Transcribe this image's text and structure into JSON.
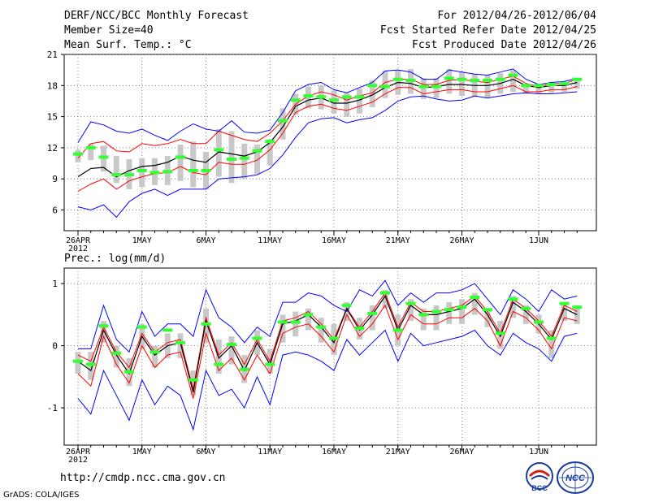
{
  "header": {
    "title": "DERF/NCC/BCC Monthly Forecast",
    "member_size": "Member Size=40",
    "variable": "Mean Surf. Temp.: °C",
    "forecast_period": "For 2012/04/26-2012/06/04",
    "started_refer_date": "Fcst Started Refer Date 2012/04/25",
    "produced_date": "Fcst Produced Date 2012/04/26"
  },
  "footer": {
    "url": "http://cmdp.ncc.cma.gov.cn",
    "credit": "GrADS: COLA/IGES",
    "logo_bcc": "BCC",
    "logo_ncc": "NCC"
  },
  "colors": {
    "envelope": "#0000ff",
    "spread": "#ff0000",
    "mean": "#000000",
    "box": "#c8c8c8",
    "median": "#33ff33",
    "grid": "#666666"
  },
  "chart_data": [
    {
      "type": "line",
      "panel": "temperature",
      "title": "Mean Surf. Temp.: °C",
      "x_days": 40,
      "x_tick_labels": [
        {
          "day": 0,
          "label": "26APR",
          "sub": "2012"
        },
        {
          "day": 5,
          "label": "1MAY"
        },
        {
          "day": 10,
          "label": "6MAY"
        },
        {
          "day": 15,
          "label": "11MAY"
        },
        {
          "day": 20,
          "label": "16MAY"
        },
        {
          "day": 25,
          "label": "21MAY"
        },
        {
          "day": 30,
          "label": "26MAY"
        },
        {
          "day": 36,
          "label": "1JUN"
        }
      ],
      "ylim": [
        4,
        21
      ],
      "yticks": [
        6,
        9,
        12,
        15,
        18,
        21
      ],
      "series": [
        {
          "name": "max",
          "values": [
            6.3,
            6.0,
            6.5,
            5.3,
            6.8,
            7.6,
            8.0,
            7.4,
            8.0,
            8.0,
            8.0,
            9.0,
            9.1,
            9.2,
            9.4,
            10.0,
            11.3,
            13.0,
            14.4,
            14.8,
            14.9,
            14.4,
            14.7,
            14.9,
            15.6,
            16.5,
            16.9,
            17.0,
            16.7,
            16.5,
            16.6,
            17.0,
            16.8,
            17.0,
            17.2,
            17.3,
            17.2,
            17.2,
            17.3,
            17.4
          ]
        },
        {
          "name": "p_high",
          "values": [
            11.0,
            12.4,
            12.6,
            11.7,
            11.6,
            12.4,
            12.2,
            12.4,
            12.8,
            12.4,
            12.4,
            13.6,
            13.2,
            12.8,
            12.6,
            13.4,
            14.6,
            16.2,
            17.0,
            17.4,
            17.1,
            16.6,
            17.0,
            17.3,
            18.3,
            18.6,
            18.6,
            18.1,
            18.1,
            18.5,
            18.6,
            18.4,
            18.3,
            18.6,
            18.9,
            18.2,
            17.9,
            18.2,
            18.2,
            18.6
          ]
        },
        {
          "name": "mean",
          "values": [
            9.2,
            10.0,
            10.1,
            9.2,
            9.8,
            10.2,
            10.3,
            10.6,
            11.2,
            10.8,
            10.6,
            11.6,
            11.4,
            11.2,
            11.6,
            12.5,
            14.0,
            16.0,
            16.6,
            16.8,
            16.3,
            16.3,
            16.6,
            17.1,
            17.8,
            18.3,
            18.2,
            17.8,
            17.9,
            18.1,
            18.1,
            18.0,
            18.0,
            18.2,
            18.6,
            18.0,
            17.8,
            18.0,
            18.0,
            18.3
          ]
        },
        {
          "name": "p_low",
          "values": [
            7.8,
            8.5,
            9.0,
            8.0,
            8.8,
            9.2,
            9.5,
            9.6,
            10.2,
            9.6,
            9.4,
            10.6,
            10.4,
            10.4,
            10.8,
            11.8,
            13.4,
            15.4,
            16.0,
            16.2,
            15.8,
            15.6,
            16.0,
            16.4,
            17.2,
            17.8,
            17.8,
            17.2,
            17.4,
            17.6,
            17.6,
            17.4,
            17.4,
            17.7,
            18.0,
            17.4,
            17.4,
            17.6,
            17.6,
            17.9
          ]
        },
        {
          "name": "min",
          "values": [
            12.5,
            14.5,
            14.2,
            13.6,
            13.4,
            13.8,
            13.2,
            12.7,
            13.6,
            14.3,
            13.8,
            13.6,
            14.6,
            13.5,
            13.4,
            13.7,
            15.4,
            17.5,
            18.1,
            18.3,
            17.6,
            17.3,
            17.8,
            18.3,
            19.4,
            19.5,
            19.3,
            18.6,
            18.6,
            19.5,
            19.3,
            19.1,
            19.0,
            19.3,
            19.6,
            18.6,
            18.1,
            18.3,
            18.4,
            18.7
          ]
        }
      ],
      "boxes": {
        "low": [
          10.6,
          10.8,
          9.7,
          8.6,
          8.0,
          8.2,
          8.4,
          8.4,
          8.8,
          8.2,
          8.0,
          9.2,
          8.6,
          9.0,
          9.5,
          10.3,
          12.8,
          15.2,
          15.8,
          15.7,
          15.3,
          15.0,
          15.3,
          15.9,
          16.8,
          17.1,
          17.2,
          16.7,
          16.8,
          17.2,
          17.0,
          16.9,
          16.8,
          17.2,
          17.4,
          17.2,
          17.2,
          17.3,
          17.4,
          17.7
        ],
        "high": [
          11.8,
          12.4,
          12.2,
          11.2,
          10.9,
          11.0,
          11.0,
          11.2,
          12.3,
          12.6,
          11.6,
          13.8,
          13.6,
          12.4,
          12.3,
          12.8,
          15.8,
          17.2,
          17.9,
          18.0,
          17.5,
          17.3,
          17.7,
          18.5,
          19.4,
          19.5,
          19.6,
          18.7,
          18.7,
          19.6,
          19.3,
          19.1,
          19.0,
          19.2,
          19.5,
          18.0,
          17.8,
          18.2,
          18.3,
          18.7
        ],
        "median": [
          11.4,
          12.0,
          11.1,
          9.4,
          9.4,
          9.8,
          9.6,
          9.7,
          11.1,
          9.8,
          9.8,
          11.8,
          10.9,
          11.0,
          11.7,
          12.6,
          14.6,
          16.6,
          17.0,
          16.9,
          16.6,
          16.9,
          16.9,
          18.0,
          17.9,
          18.6,
          18.5,
          17.9,
          17.9,
          18.7,
          18.6,
          18.5,
          18.5,
          18.6,
          19.0,
          18.0,
          18.0,
          18.1,
          18.2,
          18.6
        ]
      }
    },
    {
      "type": "line",
      "panel": "precipitation",
      "title": "Prec.: log(mm/d)",
      "x_days": 40,
      "x_tick_labels": [
        {
          "day": 0,
          "label": "26APR",
          "sub": "2012"
        },
        {
          "day": 5,
          "label": "1MAY"
        },
        {
          "day": 10,
          "label": "6MAY"
        },
        {
          "day": 15,
          "label": "11MAY"
        },
        {
          "day": 20,
          "label": "16MAY"
        },
        {
          "day": 25,
          "label": "21MAY"
        },
        {
          "day": 30,
          "label": "26MAY"
        },
        {
          "day": 36,
          "label": "1JUN"
        }
      ],
      "ylim": [
        -1.6,
        1.25
      ],
      "yticks": [
        -1,
        0,
        1
      ],
      "series": [
        {
          "name": "max",
          "values": [
            -0.05,
            -0.05,
            0.65,
            0.1,
            -0.1,
            0.55,
            0.15,
            0.35,
            0.35,
            0.15,
            0.9,
            0.45,
            0.3,
            0.05,
            0.3,
            0.15,
            0.7,
            0.7,
            0.85,
            0.8,
            0.65,
            0.55,
            0.9,
            0.8,
            1.05,
            0.65,
            0.85,
            0.7,
            0.85,
            0.85,
            0.9,
            1.0,
            0.75,
            0.5,
            0.9,
            0.75,
            0.55,
            0.9,
            0.75,
            0.8
          ]
        },
        {
          "name": "p_high",
          "values": [
            -0.15,
            -0.25,
            0.3,
            -0.1,
            -0.35,
            0.2,
            -0.1,
            0.05,
            0.1,
            -0.7,
            0.45,
            -0.15,
            0.05,
            -0.3,
            0.1,
            -0.25,
            0.4,
            0.45,
            0.55,
            0.35,
            0.1,
            0.6,
            0.3,
            0.55,
            0.85,
            0.3,
            0.7,
            0.55,
            0.55,
            0.6,
            0.65,
            0.8,
            0.55,
            0.2,
            0.75,
            0.6,
            0.4,
            0.15,
            0.65,
            0.55
          ]
        },
        {
          "name": "mean",
          "values": [
            -0.25,
            -0.4,
            0.25,
            -0.15,
            -0.45,
            0.15,
            -0.15,
            0.0,
            0.05,
            -0.75,
            0.4,
            -0.2,
            0.0,
            -0.4,
            0.05,
            -0.3,
            0.35,
            0.4,
            0.5,
            0.3,
            0.05,
            0.6,
            0.25,
            0.5,
            0.8,
            0.25,
            0.65,
            0.5,
            0.5,
            0.55,
            0.6,
            0.75,
            0.5,
            0.15,
            0.7,
            0.55,
            0.35,
            0.1,
            0.6,
            0.5
          ]
        },
        {
          "name": "p_low",
          "values": [
            -0.45,
            -0.65,
            0.15,
            -0.3,
            -0.6,
            0.0,
            -0.35,
            -0.15,
            -0.1,
            -0.85,
            0.2,
            -0.4,
            -0.2,
            -0.55,
            -0.15,
            -0.45,
            0.2,
            0.3,
            0.35,
            0.15,
            -0.1,
            0.5,
            0.15,
            0.35,
            0.65,
            0.1,
            0.5,
            0.35,
            0.35,
            0.45,
            0.45,
            0.6,
            0.4,
            0.0,
            0.55,
            0.45,
            0.25,
            -0.05,
            0.45,
            0.4
          ]
        },
        {
          "name": "min",
          "values": [
            -0.85,
            -1.1,
            -0.4,
            -0.8,
            -1.2,
            -0.55,
            -0.95,
            -0.65,
            -0.8,
            -1.35,
            -0.4,
            -0.8,
            -0.7,
            -1.0,
            -0.5,
            -0.95,
            -0.15,
            -0.1,
            -0.15,
            -0.25,
            -0.4,
            0.1,
            -0.15,
            0.05,
            0.25,
            -0.25,
            0.2,
            0.0,
            0.05,
            0.1,
            0.15,
            0.25,
            0.0,
            -0.15,
            0.2,
            0.05,
            -0.05,
            -0.25,
            0.15,
            0.2
          ]
        }
      ],
      "boxes": {
        "low": [
          -0.45,
          -0.55,
          0.05,
          -0.35,
          -0.65,
          -0.05,
          -0.35,
          -0.2,
          -0.2,
          -0.8,
          0.05,
          -0.45,
          -0.3,
          -0.6,
          -0.15,
          -0.45,
          0.05,
          0.15,
          0.25,
          0.05,
          -0.15,
          0.4,
          0.1,
          0.25,
          0.6,
          0.0,
          0.4,
          0.25,
          0.25,
          0.35,
          0.35,
          0.5,
          0.3,
          -0.05,
          0.45,
          0.35,
          0.2,
          -0.2,
          0.4,
          0.35
        ]
      },
      "boxes_extra": {
        "high": [
          -0.1,
          -0.1,
          0.4,
          0.0,
          -0.2,
          0.35,
          0.0,
          0.2,
          0.2,
          -0.4,
          0.6,
          0.1,
          0.15,
          -0.15,
          0.25,
          -0.05,
          0.5,
          0.55,
          0.6,
          0.45,
          0.35,
          0.7,
          0.45,
          0.65,
          0.9,
          0.5,
          0.75,
          0.6,
          0.65,
          0.7,
          0.75,
          0.85,
          0.6,
          0.4,
          0.8,
          0.65,
          0.5,
          0.25,
          0.7,
          0.65
        ],
        "median": [
          -0.25,
          -0.3,
          0.32,
          -0.12,
          -0.42,
          0.3,
          -0.1,
          0.25,
          0.05,
          -0.55,
          0.35,
          -0.3,
          0.02,
          -0.38,
          0.12,
          -0.3,
          0.38,
          0.38,
          0.5,
          0.3,
          0.12,
          0.65,
          0.28,
          0.52,
          0.85,
          0.25,
          0.68,
          0.5,
          0.55,
          0.58,
          0.62,
          0.78,
          0.58,
          0.2,
          0.75,
          0.6,
          0.38,
          0.12,
          0.68,
          0.62
        ]
      }
    }
  ]
}
